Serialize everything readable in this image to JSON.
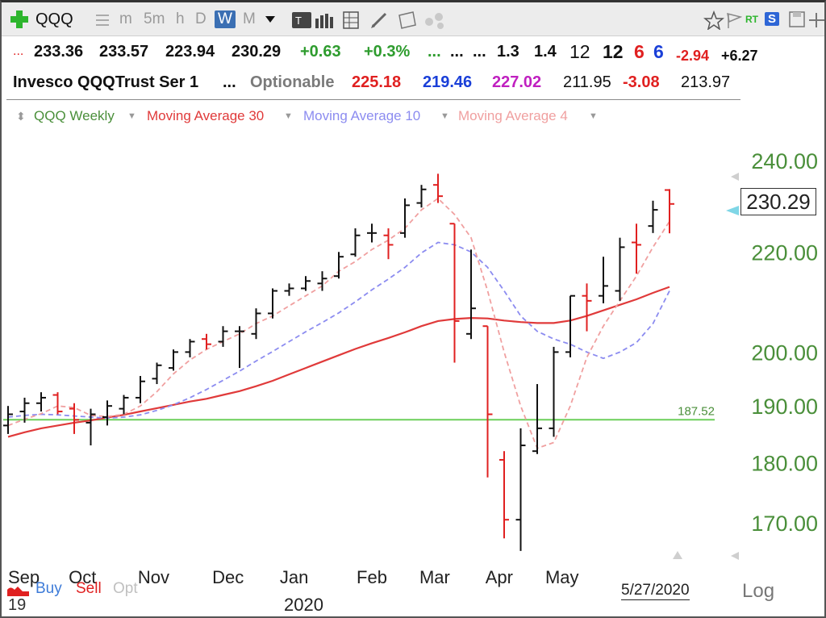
{
  "toolbar": {
    "symbol": "QQQ",
    "intervals": [
      "m",
      "5m",
      "h",
      "D",
      "W",
      "M"
    ],
    "active_interval": "W",
    "rt_label": "RT",
    "s_label": "S"
  },
  "quote_row1": {
    "dots": "...",
    "open": "233.36",
    "high": "233.57",
    "low": "223.94",
    "close": "230.29",
    "change": "+0.63",
    "change_pct": "+0.3%",
    "f1": "...",
    "f2": "...",
    "f3": "...",
    "v1": "1.3",
    "v2": "1.4",
    "n1": "12",
    "n2": "12",
    "n3": "6",
    "n4": "6",
    "n5": "-2.94",
    "n6": "+6.27"
  },
  "quote_row2": {
    "name": "Invesco QQQTrust Ser 1",
    "dots": "...",
    "optionable": "Optionable",
    "p1": "225.18",
    "p2": "219.46",
    "p3": "227.02",
    "p4": "211.95",
    "p5": "-3.08",
    "p6": "213.97"
  },
  "legend": {
    "series": "QQQ Weekly",
    "ma30": "Moving Average 30",
    "ma10": "Moving Average 10",
    "ma4": "Moving Average 4"
  },
  "colors": {
    "ma30": "#e03a3a",
    "ma10": "#8c8cf0",
    "ma4": "#f0a0a0",
    "level": "#6ccf5a",
    "up": "#111111",
    "down": "#e02020"
  },
  "footer": {
    "buy": "Buy",
    "sell": "Sell",
    "opt": "Opt",
    "date": "5/27/2020",
    "log": "Log",
    "year": "2020",
    "year_stub": "19"
  },
  "last_price": "230.29",
  "chart_data": {
    "type": "ohlc",
    "title": "QQQ Weekly",
    "log_scale": true,
    "ylim": [
      165,
      245
    ],
    "y_ticks": [
      170,
      180,
      190,
      200,
      220,
      240
    ],
    "y_tick_labels": [
      "170.00",
      "180.00",
      "190.00",
      "200.00",
      "220.00",
      "240.00"
    ],
    "x_labels": [
      {
        "label": "Sep",
        "index": 0
      },
      {
        "label": "Oct",
        "index": 4.5
      },
      {
        "label": "Nov",
        "index": 8.8
      },
      {
        "label": "Dec",
        "index": 13.3
      },
      {
        "label": "Jan",
        "index": 17.3
      },
      {
        "label": "Feb",
        "index": 22
      },
      {
        "label": "Mar",
        "index": 25.8
      },
      {
        "label": "Apr",
        "index": 29.7
      },
      {
        "label": "May",
        "index": 33.5
      }
    ],
    "horizontal_level": {
      "value": 187.52,
      "label": "187.52"
    },
    "bars": [
      {
        "o": 186.5,
        "h": 190.0,
        "l": 185.0,
        "c": 188.5
      },
      {
        "o": 189.0,
        "h": 191.5,
        "l": 187.0,
        "c": 190.5
      },
      {
        "o": 190.5,
        "h": 192.5,
        "l": 189.0,
        "c": 191.5
      },
      {
        "o": 192.0,
        "h": 192.5,
        "l": 188.5,
        "c": 189.0
      },
      {
        "o": 189.5,
        "h": 190.5,
        "l": 185.0,
        "c": 187.5
      },
      {
        "o": 187.0,
        "h": 189.5,
        "l": 183.0,
        "c": 188.5
      },
      {
        "o": 188.0,
        "h": 191.0,
        "l": 186.5,
        "c": 190.0
      },
      {
        "o": 189.5,
        "h": 192.0,
        "l": 188.5,
        "c": 191.5
      },
      {
        "o": 191.5,
        "h": 195.5,
        "l": 190.5,
        "c": 194.5
      },
      {
        "o": 195.0,
        "h": 198.0,
        "l": 194.0,
        "c": 197.5
      },
      {
        "o": 197.0,
        "h": 200.5,
        "l": 196.5,
        "c": 200.0
      },
      {
        "o": 200.0,
        "h": 202.5,
        "l": 199.0,
        "c": 202.0
      },
      {
        "o": 202.5,
        "h": 203.5,
        "l": 200.5,
        "c": 201.5
      },
      {
        "o": 202.0,
        "h": 205.0,
        "l": 201.0,
        "c": 204.0
      },
      {
        "o": 204.0,
        "h": 205.0,
        "l": 197.0,
        "c": 204.0
      },
      {
        "o": 203.5,
        "h": 208.5,
        "l": 202.5,
        "c": 207.5
      },
      {
        "o": 207.5,
        "h": 212.5,
        "l": 206.5,
        "c": 212.0
      },
      {
        "o": 212.0,
        "h": 213.5,
        "l": 211.0,
        "c": 212.5
      },
      {
        "o": 212.5,
        "h": 215.0,
        "l": 212.0,
        "c": 214.0
      },
      {
        "o": 213.5,
        "h": 216.0,
        "l": 212.0,
        "c": 214.5
      },
      {
        "o": 215.0,
        "h": 220.0,
        "l": 214.5,
        "c": 219.0
      },
      {
        "o": 219.5,
        "h": 225.0,
        "l": 219.0,
        "c": 223.5
      },
      {
        "o": 224.0,
        "h": 226.0,
        "l": 222.0,
        "c": 224.0
      },
      {
        "o": 223.5,
        "h": 225.0,
        "l": 218.5,
        "c": 221.5
      },
      {
        "o": 224.0,
        "h": 231.5,
        "l": 223.0,
        "c": 230.0
      },
      {
        "o": 230.5,
        "h": 234.5,
        "l": 229.5,
        "c": 233.5
      },
      {
        "o": 234.5,
        "h": 237.0,
        "l": 230.5,
        "c": 232.0
      },
      {
        "o": 226.0,
        "h": 226.0,
        "l": 198.0,
        "c": 206.0
      },
      {
        "o": 203.5,
        "h": 220.5,
        "l": 202.5,
        "c": 208.5
      },
      {
        "o": 205.0,
        "h": 205.0,
        "l": 177.5,
        "c": 188.5
      },
      {
        "o": 180.5,
        "h": 182.0,
        "l": 167.5,
        "c": 170.5
      },
      {
        "o": 170.5,
        "h": 186.0,
        "l": 165.5,
        "c": 183.0
      },
      {
        "o": 182.0,
        "h": 194.0,
        "l": 181.5,
        "c": 186.0
      },
      {
        "o": 186.0,
        "h": 201.0,
        "l": 184.5,
        "c": 200.0
      },
      {
        "o": 200.0,
        "h": 211.0,
        "l": 199.0,
        "c": 211.0
      },
      {
        "o": 211.0,
        "h": 213.5,
        "l": 204.0,
        "c": 210.0
      },
      {
        "o": 211.0,
        "h": 219.0,
        "l": 209.5,
        "c": 213.0
      },
      {
        "o": 212.0,
        "h": 223.0,
        "l": 210.0,
        "c": 221.0
      },
      {
        "o": 222.0,
        "h": 226.0,
        "l": 215.5,
        "c": 221.5
      },
      {
        "o": 225.5,
        "h": 231.0,
        "l": 224.0,
        "c": 229.0
      },
      {
        "o": 233.36,
        "h": 233.57,
        "l": 223.94,
        "c": 230.29
      }
    ],
    "ma30": [
      184.5,
      185.3,
      186.0,
      186.5,
      187.0,
      187.4,
      187.9,
      188.4,
      189.0,
      189.6,
      190.2,
      190.8,
      191.3,
      192.0,
      192.7,
      193.6,
      194.6,
      195.8,
      197.0,
      198.2,
      199.4,
      200.6,
      201.7,
      202.7,
      203.8,
      205.0,
      206.0,
      206.4,
      206.6,
      206.5,
      206.1,
      205.8,
      205.6,
      205.6,
      206.1,
      207.0,
      208.1,
      209.2,
      210.3,
      211.6,
      212.8
    ],
    "ma10": [
      188.0,
      188.3,
      188.5,
      188.4,
      188.2,
      188.0,
      187.8,
      188.0,
      188.4,
      189.2,
      190.2,
      191.5,
      193.0,
      194.7,
      196.4,
      198.3,
      200.1,
      202.0,
      203.9,
      205.7,
      207.6,
      209.8,
      212.2,
      214.4,
      216.8,
      219.8,
      222.0,
      221.5,
      220.0,
      216.8,
      212.0,
      207.0,
      204.0,
      202.5,
      201.5,
      200.0,
      198.8,
      200.0,
      201.8,
      205.5,
      212.0
    ],
    "ma4": [
      186.5,
      187.6,
      188.6,
      190.0,
      189.7,
      188.3,
      188.1,
      188.5,
      190.0,
      192.6,
      195.9,
      198.5,
      200.5,
      202.0,
      203.5,
      205.5,
      207.0,
      209.0,
      211.0,
      213.0,
      216.0,
      218.0,
      220.5,
      222.5,
      225.0,
      229.0,
      231.5,
      228.0,
      223.0,
      212.0,
      200.0,
      190.0,
      182.5,
      183.5,
      190.0,
      199.0,
      205.0,
      210.0,
      215.0,
      221.0,
      226.5
    ]
  }
}
